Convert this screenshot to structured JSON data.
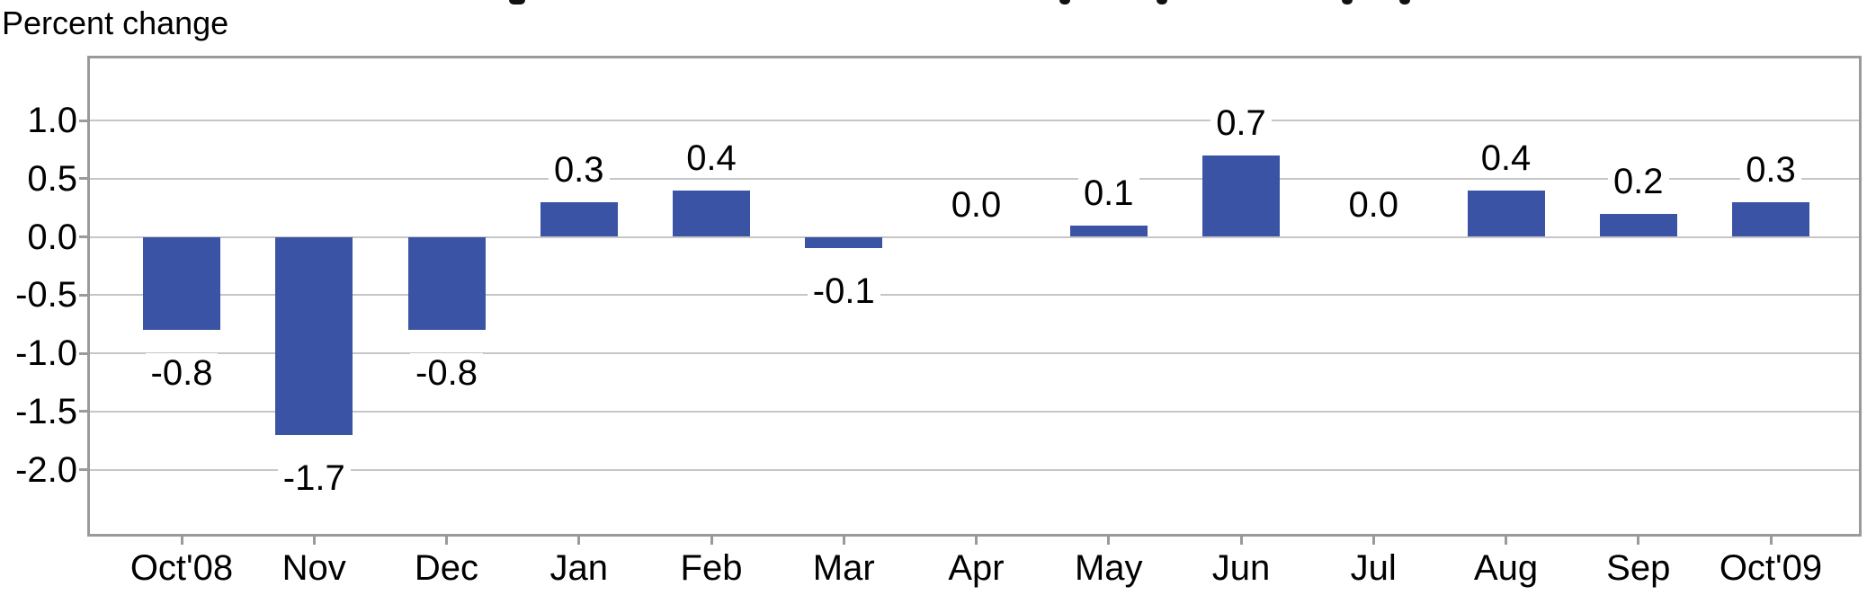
{
  "chart_data": {
    "type": "bar",
    "title": "",
    "unit_label": "Percent change",
    "categories": [
      "Oct'08",
      "Nov",
      "Dec",
      "Jan",
      "Feb",
      "Mar",
      "Apr",
      "May",
      "Jun",
      "Jul",
      "Aug",
      "Sep",
      "Oct'09"
    ],
    "values": [
      -0.8,
      -1.7,
      -0.8,
      0.3,
      0.4,
      -0.1,
      0.0,
      0.1,
      0.7,
      0.0,
      0.4,
      0.2,
      0.3
    ],
    "y_ticks": [
      1.0,
      0.5,
      0.0,
      -0.5,
      -1.0,
      -1.5,
      -2.0
    ],
    "y_tick_labels": [
      "1.0",
      "0.5",
      "0.0",
      "-0.5",
      "-1.0",
      "-1.5",
      "-2.0"
    ],
    "ylim": [
      -2.55,
      1.56
    ],
    "grid": "horizontal",
    "legend": "none",
    "xlabel": "",
    "ylabel": "Percent change",
    "bar_color": "#3A53A5"
  },
  "colors": {
    "bar": "#3A53A5",
    "frame": "#9A9A9A",
    "gridline": "#C6C6C6",
    "text": "#000000",
    "background": "#FFFFFF"
  },
  "artifacts": {
    "cropped_title_marks": [
      {
        "x": 566,
        "w": 18
      },
      {
        "x": 1178,
        "w": 12
      },
      {
        "x": 1286,
        "w": 12
      },
      {
        "x": 1492,
        "w": 12
      },
      {
        "x": 1556,
        "w": 12
      }
    ]
  }
}
